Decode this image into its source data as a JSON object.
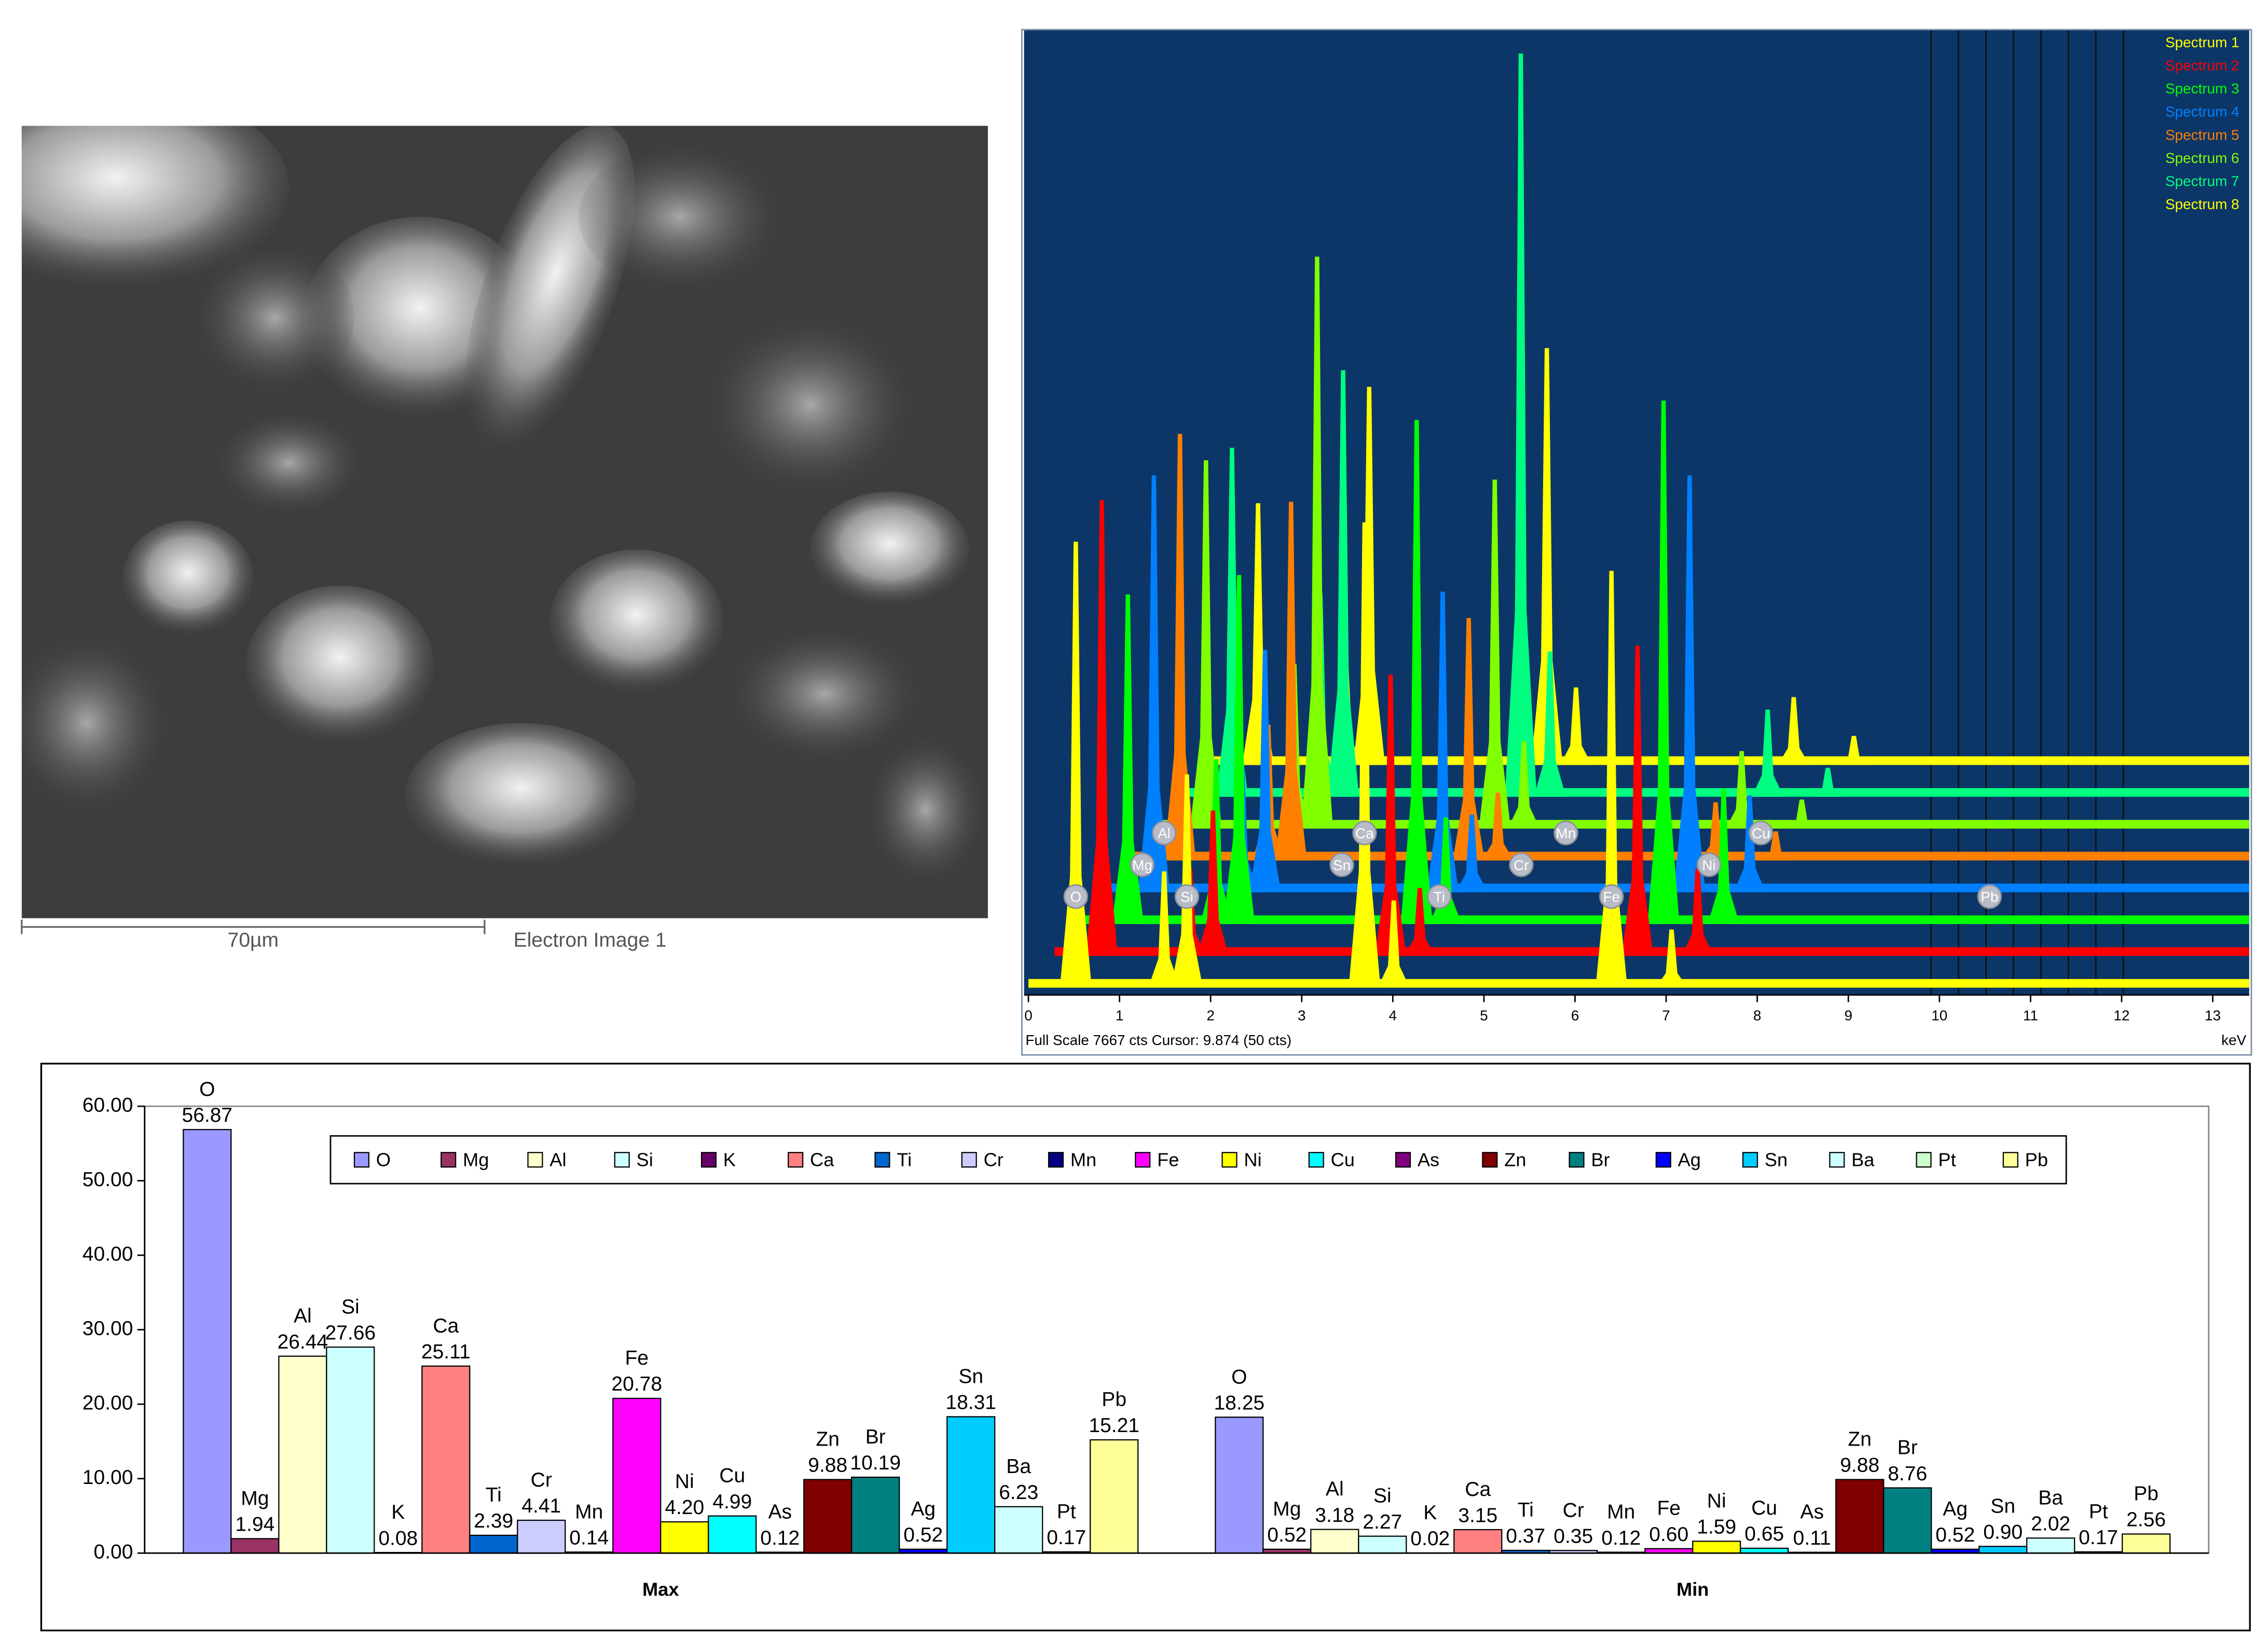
{
  "sem_image": {
    "scale_label": "70µm",
    "caption": "Electron Image 1"
  },
  "chart_data": [
    {
      "type": "area",
      "footer": "Full Scale 7667 cts Cursor: 9.874  (50 cts)",
      "x_label": "keV",
      "x": [
        0.52,
        1.49,
        1.74,
        3.69,
        4.01,
        6.4,
        7.06
      ],
      "series": [
        {
          "name": "Spectrum 1",
          "color": "#ffff00",
          "values": [
            4600,
            1200,
            2200,
            4800,
            900,
            4300,
            600
          ]
        },
        {
          "name": "Spectrum 2",
          "color": "#ff0000",
          "values": [
            4700,
            900,
            1500,
            2900,
            700,
            3200,
            900
          ]
        },
        {
          "name": "Spectrum 3",
          "color": "#00ff00",
          "values": [
            3400,
            1700,
            3600,
            5200,
            1100,
            5400,
            1400
          ]
        },
        {
          "name": "Spectrum 4",
          "color": "#0080ff",
          "values": [
            4300,
            1300,
            2500,
            3100,
            800,
            4300,
            1000
          ]
        },
        {
          "name": "Spectrum 5",
          "color": "#ff8000",
          "values": [
            4400,
            1400,
            3700,
            2500,
            700,
            600,
            300
          ]
        },
        {
          "name": "Spectrum 6",
          "color": "#80ff00",
          "values": [
            3800,
            1700,
            5900,
            3600,
            900,
            800,
            300
          ]
        },
        {
          "name": "Spectrum 7",
          "color": "#00ff80",
          "values": [
            3600,
            2100,
            4400,
            7667,
            1500,
            900,
            300
          ]
        },
        {
          "name": "Spectrum 8",
          "color": "#ffff00",
          "values": [
            2700,
            1000,
            3900,
            4300,
            800,
            700,
            300
          ]
        }
      ],
      "xlim": [
        0,
        13.4
      ],
      "xticks": [
        0,
        1,
        2,
        3,
        4,
        5,
        6,
        7,
        8,
        9,
        10,
        11,
        12,
        13
      ],
      "peak_labels": [
        {
          "text": "O",
          "x": 0.52
        },
        {
          "text": "Mg",
          "x": 1.25
        },
        {
          "text": "Al",
          "x": 1.49
        },
        {
          "text": "Si",
          "x": 1.74
        },
        {
          "text": "Sn",
          "x": 3.44
        },
        {
          "text": "Ca",
          "x": 3.69
        },
        {
          "text": "Ti",
          "x": 4.51
        },
        {
          "text": "Cr",
          "x": 5.41
        },
        {
          "text": "Mn",
          "x": 5.9
        },
        {
          "text": "Fe",
          "x": 6.4
        },
        {
          "text": "Ni",
          "x": 7.47
        },
        {
          "text": "Cu",
          "x": 8.04
        },
        {
          "text": "Pb",
          "x": 10.55
        }
      ]
    },
    {
      "type": "bar",
      "categories": [
        "Max",
        "Min"
      ],
      "series": [
        {
          "name": "O",
          "color": "#9999ff",
          "values": [
            56.87,
            18.25
          ],
          "value_labels": [
            "56.87",
            "18.25"
          ]
        },
        {
          "name": "Mg",
          "color": "#993366",
          "values": [
            1.94,
            0.52
          ],
          "value_labels": [
            "1.94",
            "0.52"
          ]
        },
        {
          "name": "Al",
          "color": "#ffffcc",
          "values": [
            26.44,
            3.18
          ],
          "value_labels": [
            "26.44",
            "3.18"
          ]
        },
        {
          "name": "Si",
          "color": "#ccffff",
          "values": [
            27.66,
            2.27
          ],
          "value_labels": [
            "27.66",
            "2.27"
          ]
        },
        {
          "name": "K",
          "color": "#660066",
          "values": [
            0.08,
            0.02
          ],
          "value_labels": [
            "0.08",
            "0.02"
          ]
        },
        {
          "name": "Ca",
          "color": "#ff8080",
          "values": [
            25.11,
            3.15
          ],
          "value_labels": [
            "25.11",
            "3.15"
          ]
        },
        {
          "name": "Ti",
          "color": "#0066cc",
          "values": [
            2.39,
            0.37
          ],
          "value_labels": [
            "2.39",
            "0.37"
          ]
        },
        {
          "name": "Cr",
          "color": "#ccccff",
          "values": [
            4.41,
            0.35
          ],
          "value_labels": [
            "4.41",
            "0.35"
          ]
        },
        {
          "name": "Mn",
          "color": "#000080",
          "values": [
            0.14,
            0.12
          ],
          "value_labels": [
            "0.14",
            "0.12"
          ]
        },
        {
          "name": "Fe",
          "color": "#ff00ff",
          "values": [
            20.78,
            0.6
          ],
          "value_labels": [
            "20.78",
            "0.60"
          ]
        },
        {
          "name": "Ni",
          "color": "#ffff00",
          "values": [
            4.2,
            1.59
          ],
          "value_labels": [
            "4.20",
            "1.59"
          ]
        },
        {
          "name": "Cu",
          "color": "#00ffff",
          "values": [
            4.99,
            0.65
          ],
          "value_labels": [
            "4.99",
            "0.65"
          ]
        },
        {
          "name": "As",
          "color": "#800080",
          "values": [
            0.12,
            0.11
          ],
          "value_labels": [
            "0.12",
            "0.11"
          ]
        },
        {
          "name": "Zn",
          "color": "#800000",
          "values": [
            9.88,
            9.88
          ],
          "value_labels": [
            "9.88",
            "9.88"
          ]
        },
        {
          "name": "Br",
          "color": "#008080",
          "values": [
            10.19,
            8.76
          ],
          "value_labels": [
            "10.19",
            "8.76"
          ]
        },
        {
          "name": "Ag",
          "color": "#0000ff",
          "values": [
            0.52,
            0.52
          ],
          "value_labels": [
            "0.52",
            "0.52"
          ]
        },
        {
          "name": "Sn",
          "color": "#00ccff",
          "values": [
            18.31,
            0.9
          ],
          "value_labels": [
            "18.31",
            "0.90"
          ]
        },
        {
          "name": "Ba",
          "color": "#ccffff",
          "values": [
            6.23,
            2.02
          ],
          "value_labels": [
            "6.23",
            "2.02"
          ]
        },
        {
          "name": "Pt",
          "color": "#ccffcc",
          "values": [
            0.17,
            0.17
          ],
          "value_labels": [
            "0.17",
            "0.17"
          ]
        },
        {
          "name": "Pb",
          "color": "#ffff99",
          "values": [
            15.21,
            2.56
          ],
          "value_labels": [
            "15.21",
            "2.56"
          ]
        }
      ],
      "ylim": [
        0,
        60
      ],
      "yticks": [
        {
          "value": 0,
          "label": "0.00"
        },
        {
          "value": 10,
          "label": "10.00"
        },
        {
          "value": 20,
          "label": "20.00"
        },
        {
          "value": 30,
          "label": "30.00"
        },
        {
          "value": 40,
          "label": "40.00"
        },
        {
          "value": 50,
          "label": "50.00"
        },
        {
          "value": 60,
          "label": "60.00"
        }
      ],
      "legend": "top"
    }
  ]
}
